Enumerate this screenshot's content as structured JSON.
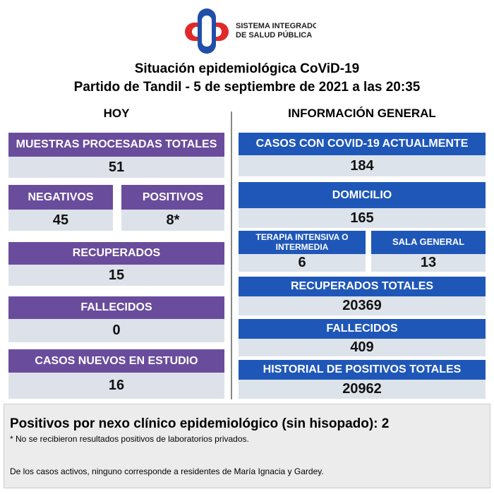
{
  "logo": {
    "line1": "SISTEMA INTEGRADO",
    "line2": "DE SALUD PÚBLICA"
  },
  "header": {
    "title": "Situación epidemiológica CoViD-19",
    "subtitle": "Partido de Tandil - 5 de septiembre de 2021 a las 20:35"
  },
  "today": {
    "heading": "HOY",
    "boxes": [
      {
        "label": "MUESTRAS PROCESADAS TOTALES",
        "value": 51
      },
      {
        "label": "NEGATIVOS",
        "value": 45
      },
      {
        "label": "POSITIVOS",
        "value": "8*"
      },
      {
        "label": "RECUPERADOS",
        "value": 15
      },
      {
        "label": "FALLECIDOS",
        "value": 0
      },
      {
        "label": "CASOS NUEVOS EN ESTUDIO",
        "value": 16
      }
    ]
  },
  "general": {
    "heading": "INFORMACIÓN GENERAL",
    "boxes": [
      {
        "label": "CASOS CON COVID-19 ACTUALMENTE",
        "value": 184
      },
      {
        "label": "DOMICILIO",
        "value": 165
      },
      {
        "label": "TERAPIA INTENSIVA O INTERMEDIA",
        "value": 6
      },
      {
        "label": "SALA GENERAL",
        "value": 13
      },
      {
        "label": "RECUPERADOS TOTALES",
        "value": 20369
      },
      {
        "label": "FALLECIDOS",
        "value": 409
      },
      {
        "label": "HISTORIAL DE POSITIVOS TOTALES",
        "value": 20962
      }
    ]
  },
  "footer": {
    "headline": "Positivos por nexo clínico epidemiológico (sin hisopado): 2",
    "note": "* No se recibieron resultados positivos de laboratorios privados.",
    "remark": "De los casos activos, ninguno corresponde a residentes de María Ignacia y Gardey."
  }
}
